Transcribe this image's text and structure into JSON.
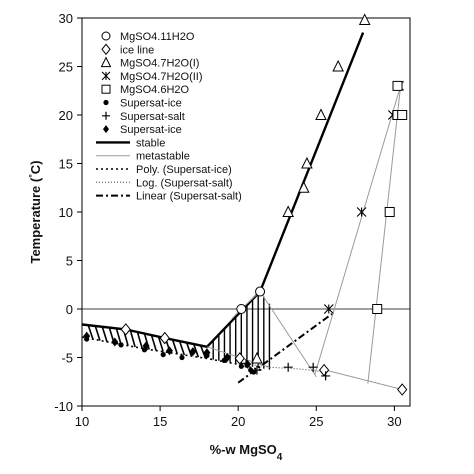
{
  "chart_data": {
    "type": "scatter",
    "xlabel": "%-w MgSO4",
    "ylabel": "Temperature (°C)",
    "xlim": [
      10,
      31
    ],
    "ylim": [
      -10,
      30
    ],
    "x_ticks": [
      10,
      15,
      20,
      25,
      30
    ],
    "y_ticks": [
      -10,
      -5,
      0,
      5,
      10,
      15,
      20,
      25,
      30
    ],
    "legend_position": "top-left",
    "series": [
      {
        "name": "MgSO4.11H2O",
        "kind": "points",
        "marker": "circle",
        "points": [
          [
            20.2,
            0
          ],
          [
            21.4,
            1.8
          ]
        ]
      },
      {
        "name": "ice line",
        "kind": "points",
        "marker": "diamond",
        "points": [
          [
            12.8,
            -2.1
          ],
          [
            15.3,
            -3.0
          ],
          [
            20.1,
            -5.1
          ],
          [
            25.5,
            -6.3
          ],
          [
            30.5,
            -8.3
          ]
        ]
      },
      {
        "name": "MgSO4.7H2O(I)",
        "kind": "points",
        "marker": "triangle",
        "points": [
          [
            21.2,
            -5.1
          ],
          [
            23.2,
            10
          ],
          [
            24.2,
            12.5
          ],
          [
            24.4,
            15
          ],
          [
            25.3,
            20
          ],
          [
            26.4,
            25
          ],
          [
            28.1,
            29.8
          ]
        ]
      },
      {
        "name": "MgSO4.7H2O(II)",
        "kind": "points",
        "marker": "asterisk",
        "points": [
          [
            25.8,
            0
          ],
          [
            27.9,
            10
          ],
          [
            29.9,
            20
          ],
          [
            30.3,
            23
          ]
        ]
      },
      {
        "name": "MgSO4.6H2O",
        "kind": "points",
        "marker": "square",
        "points": [
          [
            28.9,
            0
          ],
          [
            29.7,
            10
          ],
          [
            30.2,
            20
          ],
          [
            30.5,
            20
          ],
          [
            30.2,
            23
          ]
        ]
      },
      {
        "name": "Supersat-ice",
        "kind": "points",
        "marker": "dot",
        "points": [
          [
            10.3,
            -3.1
          ],
          [
            12.5,
            -3.7
          ],
          [
            14.0,
            -4.2
          ],
          [
            15.2,
            -4.7
          ],
          [
            16.4,
            -5.0
          ],
          [
            18.0,
            -4.8
          ],
          [
            19.1,
            -5.3
          ],
          [
            20.2,
            -5.9
          ],
          [
            20.8,
            -6.3
          ],
          [
            21.0,
            -6.5
          ]
        ]
      },
      {
        "name": "Supersat-salt",
        "kind": "points",
        "marker": "plus",
        "points": [
          [
            20.5,
            -5.6
          ],
          [
            21.2,
            -6.3
          ],
          [
            23.2,
            -6.0
          ],
          [
            24.8,
            -6.0
          ],
          [
            25.6,
            -6.9
          ]
        ]
      },
      {
        "name": "Supersat-ice",
        "kind": "points",
        "marker": "filled-diamond",
        "points": [
          [
            10.3,
            -2.8
          ],
          [
            12.1,
            -3.4
          ],
          [
            14.1,
            -3.8
          ],
          [
            15.6,
            -4.3
          ],
          [
            17.1,
            -4.4
          ],
          [
            18.0,
            -4.5
          ],
          [
            19.3,
            -5.0
          ],
          [
            20.6,
            -5.7
          ]
        ]
      },
      {
        "name": "stable",
        "kind": "line",
        "style": "solid-thick",
        "points": [
          [
            10,
            -1.6
          ],
          [
            12.8,
            -2.1
          ],
          [
            15.3,
            -3.0
          ],
          [
            18.0,
            -3.9
          ],
          [
            21.4,
            1.8
          ],
          [
            28.0,
            28.5
          ]
        ]
      },
      {
        "name": "metastable",
        "kind": "line",
        "style": "thin-gray",
        "segments": [
          [
            [
              18.0,
              -3.9
            ],
            [
              22.0,
              -6.0
            ]
          ],
          [
            [
              21.4,
              1.8
            ],
            [
              25.0,
              -7.0
            ]
          ],
          [
            [
              21.4,
              1.8
            ],
            [
              20.2,
              0
            ],
            [
              19.6,
              -1.0
            ]
          ],
          [
            [
              24.9,
              -6.8
            ],
            [
              30.4,
              23.0
            ]
          ],
          [
            [
              28.3,
              -7.7
            ],
            [
              30.4,
              23.0
            ]
          ],
          [
            [
              25.6,
              -6.3
            ],
            [
              30.5,
              -8.3
            ]
          ]
        ]
      },
      {
        "name": "Poly. (Supersat-ice)",
        "kind": "line",
        "style": "dotted",
        "points": [
          [
            10,
            -2.9
          ],
          [
            12,
            -3.5
          ],
          [
            14,
            -4.1
          ],
          [
            16,
            -4.6
          ],
          [
            18,
            -5.1
          ],
          [
            20,
            -5.7
          ],
          [
            21.5,
            -6.3
          ]
        ]
      },
      {
        "name": "Log. (Supersat-salt)",
        "kind": "line",
        "style": "dotted-fine",
        "points": [
          [
            20.3,
            -5.6
          ],
          [
            22,
            -6.0
          ],
          [
            24,
            -6.2
          ],
          [
            25.6,
            -6.5
          ]
        ]
      },
      {
        "name": "Linear (Supersat-salt)",
        "kind": "line",
        "style": "dash-dot",
        "points": [
          [
            20.0,
            -7.6
          ],
          [
            26.0,
            -0.5
          ]
        ]
      }
    ]
  }
}
